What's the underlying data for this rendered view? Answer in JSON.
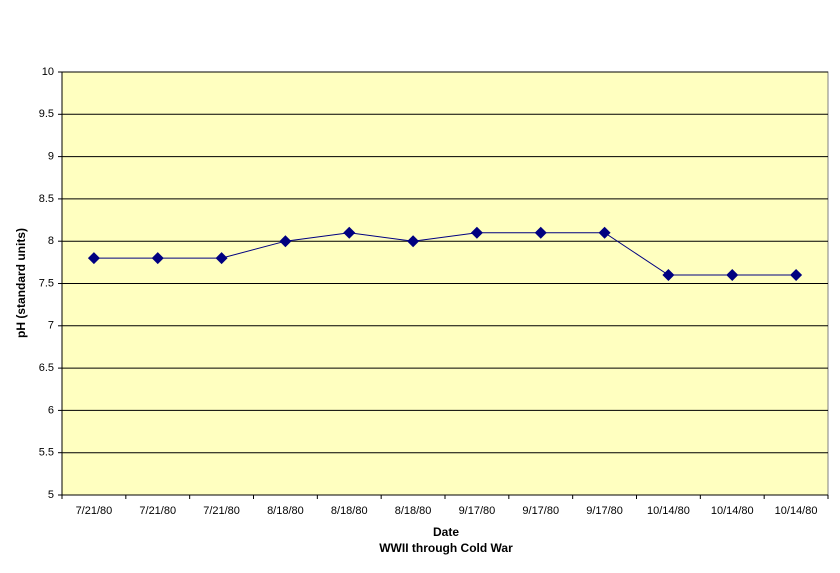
{
  "chart_data": {
    "type": "line",
    "x_label": "Date",
    "x_sublabel": "WWII through Cold War",
    "y_label": "pH (standard units)",
    "categories": [
      "7/21/80",
      "7/21/80",
      "7/21/80",
      "8/18/80",
      "8/18/80",
      "8/18/80",
      "9/17/80",
      "9/17/80",
      "9/17/80",
      "10/14/80",
      "10/14/80",
      "10/14/80"
    ],
    "series": [
      {
        "name": "pH",
        "color": "#000080",
        "values": [
          7.8,
          7.8,
          7.8,
          8.0,
          8.1,
          8.0,
          8.1,
          8.1,
          8.1,
          7.6,
          7.6,
          7.6
        ]
      }
    ],
    "ylim": [
      5,
      10
    ],
    "yticks": [
      5,
      5.5,
      6,
      6.5,
      7,
      7.5,
      8,
      8.5,
      9,
      9.5,
      10
    ],
    "grid": true,
    "background": "#ffffc0",
    "marker": "diamond"
  }
}
